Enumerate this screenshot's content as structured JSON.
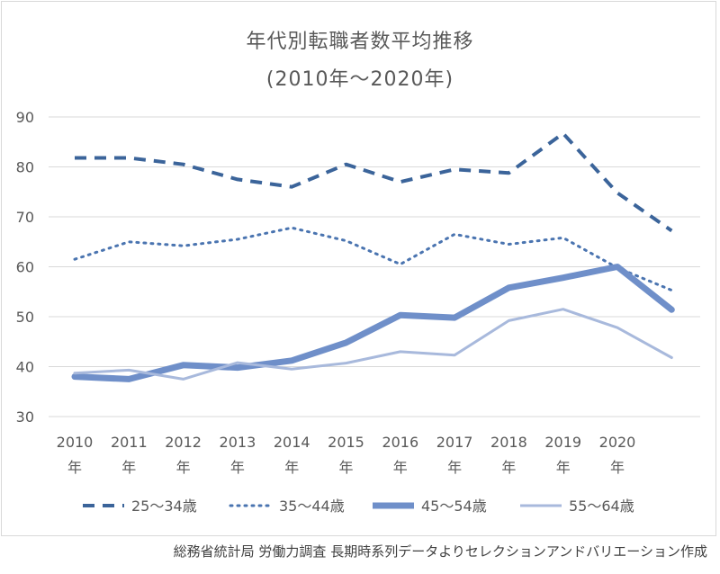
{
  "chart_data": {
    "type": "line",
    "title": "年代別転職者数平均推移",
    "subtitle": "(2010年～2020年)",
    "categories": [
      "2010年",
      "2011年",
      "2012年",
      "2013年",
      "2014年",
      "2015年",
      "2016年",
      "2017年",
      "2018年",
      "2019年",
      "2020年",
      ""
    ],
    "ylim": [
      30,
      90
    ],
    "yticks": [
      30,
      40,
      50,
      60,
      70,
      80,
      90
    ],
    "grid": true,
    "legend_position": "bottom",
    "series": [
      {
        "name": "25～34歳",
        "color": "#3b649a",
        "style": "dash",
        "width": 4,
        "values": [
          81.8,
          81.8,
          80.5,
          77.5,
          76.0,
          80.5,
          77.0,
          79.5,
          78.8,
          86.7,
          74.8,
          67.2
        ]
      },
      {
        "name": "35～44歳",
        "color": "#4a74b0",
        "style": "dot",
        "width": 3,
        "values": [
          61.5,
          65.0,
          64.2,
          65.5,
          67.8,
          65.2,
          60.5,
          66.5,
          64.5,
          65.8,
          59.8,
          55.3
        ]
      },
      {
        "name": "45～54歳",
        "color": "#6f8fc9",
        "style": "solid",
        "width": 7,
        "values": [
          38.0,
          37.5,
          40.3,
          39.8,
          41.2,
          44.8,
          50.3,
          49.8,
          55.8,
          57.8,
          60.0,
          51.4
        ]
      },
      {
        "name": "55～64歳",
        "color": "#a8b9dc",
        "style": "solid",
        "width": 3,
        "values": [
          38.7,
          39.3,
          37.5,
          40.8,
          39.5,
          40.7,
          43.0,
          42.3,
          49.2,
          51.5,
          47.8,
          41.8
        ]
      }
    ]
  },
  "source": "総務省統計局 労働力調査 長期時系列データよりセレクションアンドバリエーション作成"
}
